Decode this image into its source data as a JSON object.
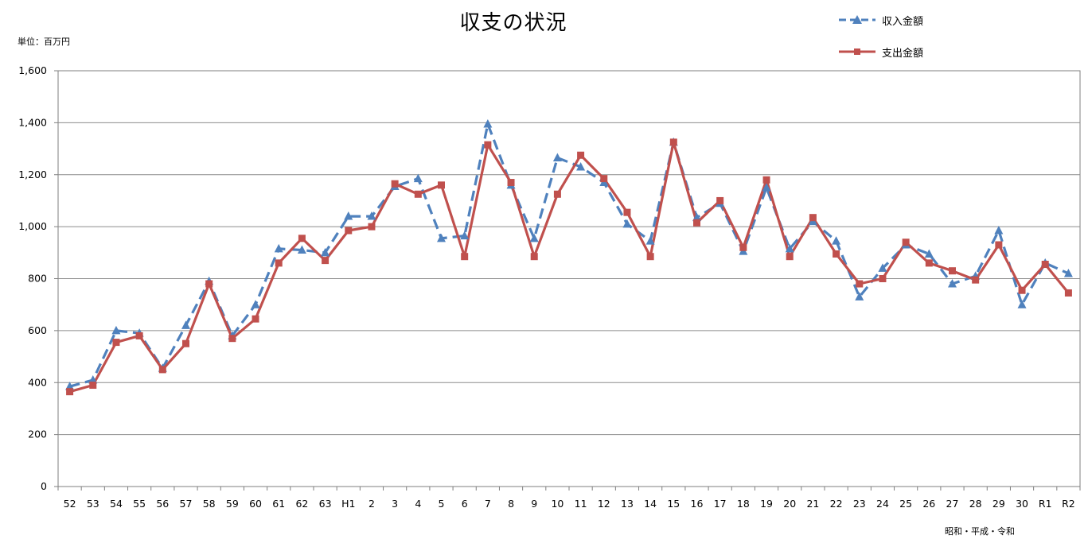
{
  "chart_data": {
    "type": "line",
    "title": "収支の状況",
    "unit_label": "単位：百万円",
    "xlabel": "昭和・平成・令和",
    "ylim": [
      0,
      1600
    ],
    "y_ticks": [
      "0",
      "200",
      "400",
      "600",
      "800",
      "1,000",
      "1,200",
      "1,400",
      "1,600"
    ],
    "grid": true,
    "legend_position": "top-right",
    "categories": [
      "52",
      "53",
      "54",
      "55",
      "56",
      "57",
      "58",
      "59",
      "60",
      "61",
      "62",
      "63",
      "H1",
      "2",
      "3",
      "4",
      "5",
      "6",
      "7",
      "8",
      "9",
      "10",
      "11",
      "12",
      "13",
      "14",
      "15",
      "16",
      "17",
      "18",
      "19",
      "20",
      "21",
      "22",
      "23",
      "24",
      "25",
      "26",
      "27",
      "28",
      "29",
      "30",
      "R1",
      "R2"
    ],
    "series": [
      {
        "name": "収入金額",
        "color": "#4f81bd",
        "style": "dashed",
        "marker": "triangle",
        "values": [
          385,
          410,
          600,
          590,
          455,
          620,
          790,
          580,
          700,
          915,
          910,
          900,
          1040,
          1040,
          1155,
          1185,
          955,
          965,
          1395,
          1160,
          955,
          1265,
          1230,
          1170,
          1010,
          945,
          1325,
          1035,
          1090,
          905,
          1150,
          915,
          1020,
          945,
          730,
          840,
          930,
          895,
          780,
          810,
          985,
          700,
          860,
          820
        ]
      },
      {
        "name": "支出金額",
        "color": "#c0504d",
        "style": "solid",
        "marker": "square",
        "values": [
          365,
          390,
          555,
          580,
          450,
          550,
          780,
          570,
          645,
          860,
          955,
          870,
          985,
          1000,
          1165,
          1125,
          1160,
          885,
          1315,
          1170,
          885,
          1125,
          1275,
          1185,
          1055,
          885,
          1325,
          1015,
          1100,
          920,
          1180,
          885,
          1035,
          895,
          780,
          800,
          940,
          860,
          830,
          795,
          930,
          755,
          855,
          745
        ]
      }
    ]
  }
}
